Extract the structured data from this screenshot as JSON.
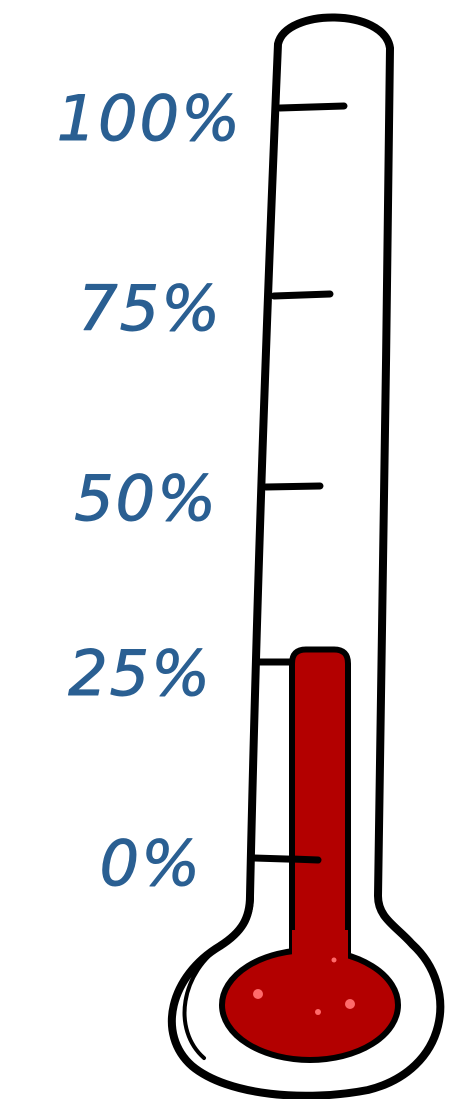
{
  "thermometer": {
    "scale_labels": [
      "100%",
      "75%",
      "50%",
      "25%",
      "0%"
    ],
    "fill_level_percent": 28,
    "colors": {
      "label": "#2a5f92",
      "mercury": "#b30000",
      "mercury_highlight": "#ff6a6a",
      "outline": "#000000",
      "glass": "#ffffff"
    }
  }
}
